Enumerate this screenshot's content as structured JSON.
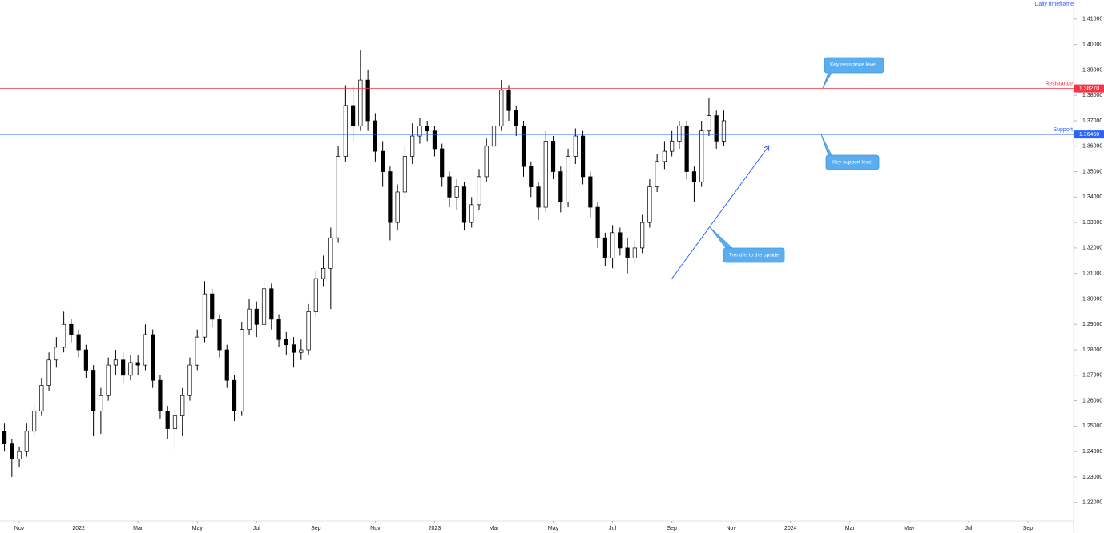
{
  "chart_data": {
    "type": "candlestick",
    "note": "Daily timeframe",
    "annotations": [
      "Key resistance level",
      "Key support level",
      "Trend is to the upside"
    ],
    "x": [
      -0.5,
      -0.25,
      0,
      0.25,
      0.5,
      0.75,
      1,
      1.25,
      1.5,
      1.75,
      2,
      2.25,
      2.5,
      2.75,
      3,
      3.25,
      3.5,
      3.75,
      4,
      4.25,
      4.5,
      4.75,
      5,
      5.25,
      5.5,
      5.75,
      6,
      6.25,
      6.5,
      6.75,
      7,
      7.25,
      7.5,
      7.75,
      8,
      8.25,
      8.5,
      8.75,
      9,
      9.25,
      9.5,
      9.75,
      10,
      10.25,
      10.5,
      10.75,
      11,
      11.25,
      11.5,
      11.75,
      12,
      12.25,
      12.5,
      12.75,
      13,
      13.25,
      13.5,
      13.75,
      14,
      14.25,
      14.5,
      14.75,
      15,
      15.25,
      15.5,
      15.75,
      16,
      16.25,
      16.5,
      16.75,
      17,
      17.25,
      17.5,
      17.75,
      18,
      18.25,
      18.5,
      18.75,
      19,
      19.25,
      19.5,
      19.75,
      20,
      20.25,
      20.5,
      20.75,
      21,
      21.25,
      21.5,
      21.75,
      22,
      22.25,
      22.5,
      22.75,
      23,
      23.25,
      23.5,
      23.75
    ],
    "open": [
      1.248,
      1.243,
      1.237,
      1.24,
      1.248,
      1.256,
      1.266,
      1.276,
      1.281,
      1.29,
      1.286,
      1.28,
      1.272,
      1.256,
      1.262,
      1.274,
      1.276,
      1.27,
      1.275,
      1.274,
      1.286,
      1.268,
      1.256,
      1.249,
      1.254,
      1.262,
      1.274,
      1.285,
      1.302,
      1.292,
      1.28,
      1.268,
      1.256,
      1.288,
      1.296,
      1.29,
      1.304,
      1.292,
      1.284,
      1.282,
      1.279,
      1.28,
      1.295,
      1.308,
      1.312,
      1.324,
      1.356,
      1.376,
      1.368,
      1.386,
      1.37,
      1.358,
      1.35,
      1.33,
      1.342,
      1.356,
      1.364,
      1.368,
      1.366,
      1.359,
      1.348,
      1.34,
      1.344,
      1.33,
      1.337,
      1.348,
      1.36,
      1.368,
      1.382,
      1.374,
      1.368,
      1.352,
      1.344,
      1.336,
      1.362,
      1.35,
      1.338,
      1.356,
      1.364,
      1.348,
      1.336,
      1.324,
      1.316,
      1.326,
      1.32,
      1.316,
      1.32,
      1.33,
      1.344,
      1.354,
      1.358,
      1.362,
      1.368,
      1.35,
      1.346,
      1.366,
      1.372,
      1.362
    ],
    "high": [
      1.251,
      1.245,
      1.242,
      1.251,
      1.259,
      1.269,
      1.279,
      1.285,
      1.295,
      1.292,
      1.288,
      1.282,
      1.274,
      1.265,
      1.277,
      1.28,
      1.279,
      1.278,
      1.278,
      1.29,
      1.288,
      1.27,
      1.258,
      1.257,
      1.265,
      1.277,
      1.288,
      1.307,
      1.304,
      1.294,
      1.282,
      1.27,
      1.291,
      1.3,
      1.299,
      1.308,
      1.306,
      1.294,
      1.287,
      1.285,
      1.284,
      1.298,
      1.311,
      1.317,
      1.328,
      1.36,
      1.384,
      1.384,
      1.398,
      1.39,
      1.373,
      1.362,
      1.352,
      1.345,
      1.36,
      1.369,
      1.371,
      1.37,
      1.368,
      1.361,
      1.35,
      1.347,
      1.346,
      1.34,
      1.351,
      1.363,
      1.372,
      1.386,
      1.384,
      1.376,
      1.37,
      1.354,
      1.346,
      1.366,
      1.364,
      1.352,
      1.359,
      1.367,
      1.366,
      1.35,
      1.338,
      1.326,
      1.329,
      1.328,
      1.324,
      1.323,
      1.333,
      1.347,
      1.357,
      1.362,
      1.366,
      1.37,
      1.37,
      1.352,
      1.37,
      1.379,
      1.374,
      1.374
    ],
    "low": [
      1.24,
      1.23,
      1.234,
      1.238,
      1.246,
      1.254,
      1.264,
      1.273,
      1.279,
      1.283,
      1.277,
      1.269,
      1.246,
      1.247,
      1.26,
      1.27,
      1.267,
      1.268,
      1.27,
      1.272,
      1.265,
      1.253,
      1.245,
      1.241,
      1.246,
      1.26,
      1.272,
      1.283,
      1.289,
      1.277,
      1.265,
      1.252,
      1.254,
      1.286,
      1.285,
      1.288,
      1.288,
      1.281,
      1.278,
      1.273,
      1.276,
      1.278,
      1.293,
      1.305,
      1.296,
      1.322,
      1.354,
      1.362,
      1.366,
      1.366,
      1.354,
      1.344,
      1.323,
      1.327,
      1.34,
      1.353,
      1.361,
      1.362,
      1.356,
      1.344,
      1.336,
      1.335,
      1.327,
      1.328,
      1.335,
      1.346,
      1.358,
      1.366,
      1.37,
      1.364,
      1.348,
      1.34,
      1.331,
      1.334,
      1.347,
      1.334,
      1.336,
      1.353,
      1.345,
      1.332,
      1.32,
      1.313,
      1.312,
      1.317,
      1.31,
      1.314,
      1.318,
      1.328,
      1.342,
      1.351,
      1.356,
      1.359,
      1.347,
      1.338,
      1.344,
      1.364,
      1.359,
      1.36
    ],
    "close": [
      1.243,
      1.237,
      1.24,
      1.248,
      1.256,
      1.266,
      1.276,
      1.281,
      1.29,
      1.286,
      1.28,
      1.272,
      1.256,
      1.262,
      1.274,
      1.276,
      1.27,
      1.275,
      1.274,
      1.286,
      1.268,
      1.256,
      1.249,
      1.254,
      1.262,
      1.274,
      1.285,
      1.302,
      1.292,
      1.28,
      1.268,
      1.256,
      1.288,
      1.296,
      1.29,
      1.304,
      1.292,
      1.284,
      1.282,
      1.279,
      1.28,
      1.295,
      1.308,
      1.312,
      1.324,
      1.356,
      1.376,
      1.368,
      1.386,
      1.37,
      1.358,
      1.35,
      1.33,
      1.342,
      1.356,
      1.364,
      1.368,
      1.366,
      1.359,
      1.348,
      1.34,
      1.344,
      1.33,
      1.337,
      1.348,
      1.36,
      1.368,
      1.382,
      1.374,
      1.368,
      1.352,
      1.344,
      1.336,
      1.362,
      1.35,
      1.338,
      1.356,
      1.364,
      1.348,
      1.336,
      1.324,
      1.316,
      1.326,
      1.32,
      1.316,
      1.32,
      1.33,
      1.344,
      1.354,
      1.358,
      1.362,
      1.368,
      1.35,
      1.346,
      1.366,
      1.372,
      1.362,
      1.37
    ],
    "up_color": "#ffffff",
    "down_color": "#000000",
    "wick_color": "#000000",
    "levels": [
      {
        "name": "Resistance",
        "value": 1.3827,
        "label": "1.38270",
        "color": "#f23645"
      },
      {
        "name": "Support",
        "value": 1.3646,
        "label": "1.36460",
        "color": "#2962ff"
      }
    ],
    "xlim": [
      -0.65,
      35.54
    ],
    "xticks": [
      {
        "value": 0,
        "label": "Nov"
      },
      {
        "value": 2,
        "label": "2022"
      },
      {
        "value": 4,
        "label": "Mar"
      },
      {
        "value": 6,
        "label": "May"
      },
      {
        "value": 8,
        "label": "Jul"
      },
      {
        "value": 10,
        "label": "Sep"
      },
      {
        "value": 12,
        "label": "Nov"
      },
      {
        "value": 14,
        "label": "2023"
      },
      {
        "value": 16,
        "label": "Mar"
      },
      {
        "value": 18,
        "label": "May"
      },
      {
        "value": 20,
        "label": "Jul"
      },
      {
        "value": 22,
        "label": "Sep"
      },
      {
        "value": 24,
        "label": "Nov"
      },
      {
        "value": 26,
        "label": "2024"
      },
      {
        "value": 28,
        "label": "Mar"
      },
      {
        "value": 30,
        "label": "May"
      },
      {
        "value": 32,
        "label": "Jul"
      },
      {
        "value": 34,
        "label": "Sep"
      }
    ],
    "ylim": [
      1.213,
      1.4175
    ],
    "yticks": [
      {
        "value": 1.22,
        "label": "1.22000"
      },
      {
        "value": 1.23,
        "label": "1.23000"
      },
      {
        "value": 1.24,
        "label": "1.24000"
      },
      {
        "value": 1.25,
        "label": "1.25000"
      },
      {
        "value": 1.26,
        "label": "1.26000"
      },
      {
        "value": 1.27,
        "label": "1.27000"
      },
      {
        "value": 1.28,
        "label": "1.28000"
      },
      {
        "value": 1.29,
        "label": "1.29000"
      },
      {
        "value": 1.3,
        "label": "1.30000"
      },
      {
        "value": 1.31,
        "label": "1.31000"
      },
      {
        "value": 1.32,
        "label": "1.32000"
      },
      {
        "value": 1.33,
        "label": "1.33000"
      },
      {
        "value": 1.34,
        "label": "1.34000"
      },
      {
        "value": 1.35,
        "label": "1.35000"
      },
      {
        "value": 1.36,
        "label": "1.36000"
      },
      {
        "value": 1.37,
        "label": "1.37000"
      },
      {
        "value": 1.38,
        "label": "1.38000"
      },
      {
        "value": 1.39,
        "label": "1.39000"
      },
      {
        "value": 1.4,
        "label": "1.40000"
      },
      {
        "value": 1.41,
        "label": "1.41000"
      }
    ]
  }
}
